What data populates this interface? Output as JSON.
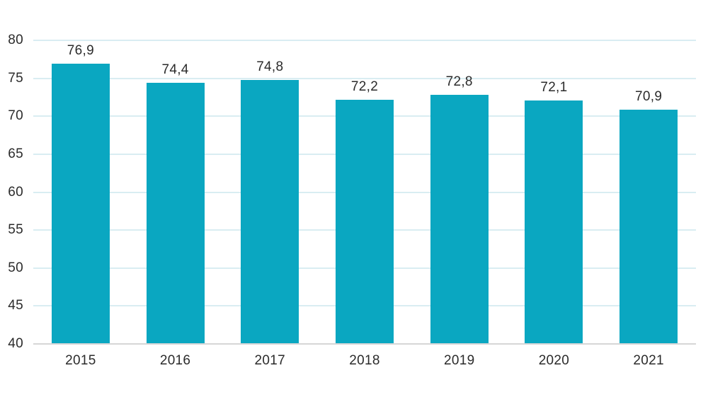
{
  "chart_data": {
    "type": "bar",
    "title": "",
    "xlabel": "",
    "ylabel": "",
    "categories": [
      "2015",
      "2016",
      "2017",
      "2018",
      "2019",
      "2020",
      "2021"
    ],
    "values": [
      76.9,
      74.4,
      74.8,
      72.2,
      72.8,
      72.1,
      70.9
    ],
    "value_labels": [
      "76,9",
      "74,4",
      "74,8",
      "72,2",
      "72,8",
      "72,1",
      "70,9"
    ],
    "ylim": [
      40,
      80
    ],
    "ytick_step": 5,
    "ytick_labels": [
      "80",
      "75",
      "70",
      "65",
      "60",
      "55",
      "50",
      "45",
      "40"
    ],
    "grid": true,
    "legend_position": "none",
    "colors": {
      "bar": "#0aa7c1",
      "gridline": "#d9edf2",
      "baseline": "#d6d6d6",
      "text": "#2b2b2b",
      "background": "#ffffff"
    }
  }
}
